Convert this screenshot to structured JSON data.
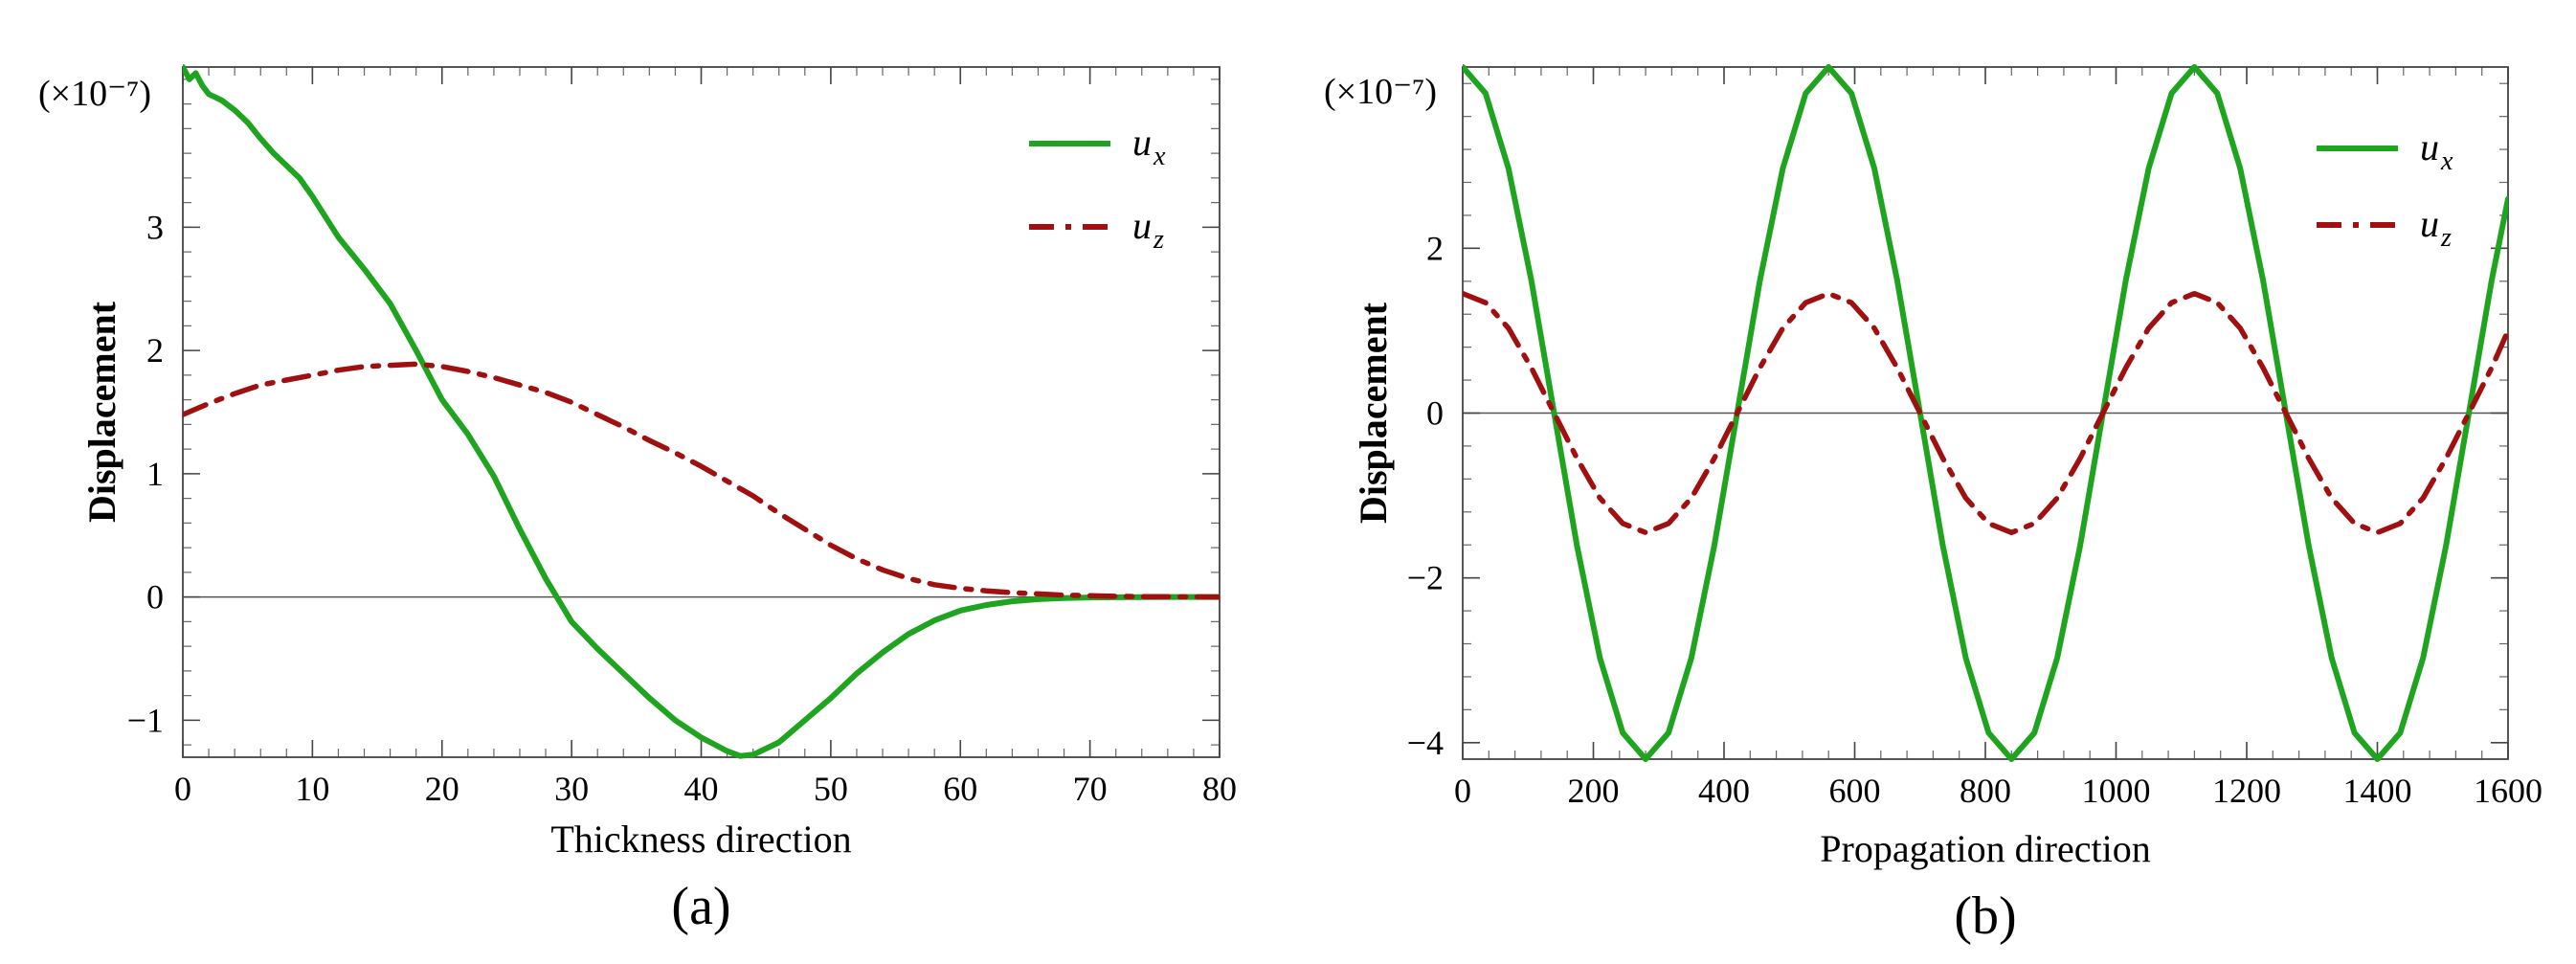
{
  "chart_data": [
    {
      "type": "line",
      "panel_label": "(a)",
      "xlabel": "Thickness direction",
      "ylabel": "Displacement",
      "scale_label": "(×10⁻⁷)",
      "xlim": [
        0,
        80
      ],
      "ylim": [
        -1.3,
        4.3
      ],
      "xticks": [
        0,
        10,
        20,
        30,
        40,
        50,
        60,
        70,
        80
      ],
      "yticks": [
        -1,
        0,
        1,
        2,
        3
      ],
      "xtick_labels": [
        "0",
        "10",
        "20",
        "30",
        "40",
        "50",
        "60",
        "70",
        "80"
      ],
      "ytick_labels": [
        "−1",
        "0",
        "1",
        "2",
        "3"
      ],
      "legend_position": "top-right",
      "series": [
        {
          "name": "u",
          "subscript": "x",
          "style": "solid",
          "color": "#1fa41f",
          "x": [
            0,
            0.5,
            1,
            1.5,
            2,
            3,
            4,
            5,
            6,
            7,
            8,
            9,
            10,
            12,
            14,
            16,
            18,
            20,
            22,
            24,
            26,
            28,
            30,
            32,
            34,
            36,
            38,
            40,
            42,
            43,
            44,
            46,
            48,
            50,
            52,
            54,
            56,
            58,
            60,
            62,
            64,
            66,
            68,
            70,
            72,
            74,
            76,
            78,
            80
          ],
          "y": [
            4.3,
            4.2,
            4.25,
            4.15,
            4.08,
            4.03,
            3.95,
            3.85,
            3.72,
            3.6,
            3.5,
            3.4,
            3.25,
            2.92,
            2.66,
            2.38,
            2.0,
            1.6,
            1.32,
            0.98,
            0.55,
            0.15,
            -0.2,
            -0.42,
            -0.62,
            -0.82,
            -1.0,
            -1.14,
            -1.25,
            -1.29,
            -1.28,
            -1.18,
            -1.0,
            -0.82,
            -0.62,
            -0.45,
            -0.3,
            -0.19,
            -0.11,
            -0.065,
            -0.035,
            -0.018,
            -0.009,
            -0.004,
            -0.002,
            -0.001,
            0,
            0,
            0
          ]
        },
        {
          "name": "u",
          "subscript": "z",
          "style": "dashdot",
          "color": "#a01010",
          "x": [
            0,
            2,
            4,
            6,
            8,
            10,
            12,
            14,
            16,
            18,
            20,
            22,
            24,
            26,
            28,
            30,
            32,
            34,
            36,
            38,
            40,
            42,
            44,
            46,
            48,
            50,
            52,
            54,
            56,
            58,
            60,
            62,
            64,
            66,
            68,
            70,
            72,
            74,
            76,
            78,
            80
          ],
          "y": [
            1.48,
            1.57,
            1.65,
            1.72,
            1.76,
            1.8,
            1.84,
            1.87,
            1.88,
            1.89,
            1.87,
            1.83,
            1.78,
            1.72,
            1.66,
            1.58,
            1.48,
            1.38,
            1.27,
            1.17,
            1.06,
            0.94,
            0.82,
            0.68,
            0.55,
            0.42,
            0.31,
            0.22,
            0.15,
            0.1,
            0.07,
            0.05,
            0.035,
            0.025,
            0.015,
            0.01,
            0.006,
            0.003,
            0.002,
            0.001,
            0
          ]
        }
      ]
    },
    {
      "type": "line",
      "panel_label": "(b)",
      "xlabel": "Propagation direction",
      "ylabel": "Displacement",
      "scale_label": "(×10⁻⁷)",
      "xlim": [
        0,
        1600
      ],
      "ylim": [
        -4.2,
        4.2
      ],
      "xticks": [
        0,
        200,
        400,
        600,
        800,
        1000,
        1200,
        1400,
        1600
      ],
      "yticks": [
        -4,
        -2,
        0,
        2
      ],
      "xtick_labels": [
        "0",
        "200",
        "400",
        "600",
        "800",
        "1000",
        "1200",
        "1400",
        "1600"
      ],
      "ytick_labels": [
        "−4",
        "−2",
        "0",
        "2"
      ],
      "legend_position": "top-right",
      "series": [
        {
          "name": "u",
          "subscript": "x",
          "style": "solid",
          "color": "#1fa41f",
          "x": [
            0,
            35,
            70,
            105,
            140,
            175,
            210,
            245,
            280,
            315,
            350,
            385,
            420,
            455,
            490,
            525,
            560,
            595,
            630,
            665,
            700,
            735,
            770,
            805,
            840,
            875,
            910,
            945,
            980,
            1015,
            1050,
            1085,
            1120,
            1155,
            1190,
            1225,
            1260,
            1295,
            1330,
            1365,
            1400,
            1435,
            1470,
            1505,
            1540,
            1575,
            1600
          ],
          "y": [
            4.2,
            3.88,
            2.97,
            1.61,
            0,
            -1.61,
            -2.97,
            -3.88,
            -4.2,
            -3.88,
            -2.97,
            -1.61,
            0,
            1.61,
            2.97,
            3.88,
            4.2,
            3.88,
            2.97,
            1.61,
            0,
            -1.61,
            -2.97,
            -3.88,
            -4.2,
            -3.88,
            -2.97,
            -1.61,
            0,
            1.61,
            2.97,
            3.88,
            4.2,
            3.88,
            2.97,
            1.61,
            0,
            -1.61,
            -2.97,
            -3.88,
            -4.2,
            -3.88,
            -2.97,
            -1.61,
            0,
            1.61,
            2.6
          ]
        },
        {
          "name": "u",
          "subscript": "z",
          "style": "dashdot",
          "color": "#a01010",
          "x": [
            0,
            35,
            70,
            105,
            140,
            175,
            210,
            245,
            280,
            315,
            350,
            385,
            420,
            455,
            490,
            525,
            560,
            595,
            630,
            665,
            700,
            735,
            770,
            805,
            840,
            875,
            910,
            945,
            980,
            1015,
            1050,
            1085,
            1120,
            1155,
            1190,
            1225,
            1260,
            1295,
            1330,
            1365,
            1400,
            1435,
            1470,
            1505,
            1540,
            1575,
            1600
          ],
          "y": [
            1.45,
            1.34,
            1.03,
            0.55,
            0,
            -0.55,
            -1.03,
            -1.34,
            -1.45,
            -1.34,
            -1.03,
            -0.55,
            0,
            0.55,
            1.03,
            1.34,
            1.45,
            1.34,
            1.03,
            0.55,
            0,
            -0.55,
            -1.03,
            -1.34,
            -1.45,
            -1.34,
            -1.03,
            -0.55,
            0,
            0.55,
            1.03,
            1.34,
            1.45,
            1.34,
            1.03,
            0.55,
            0,
            -0.55,
            -1.03,
            -1.34,
            -1.45,
            -1.34,
            -1.03,
            -0.55,
            0,
            0.55,
            1.0
          ]
        }
      ]
    }
  ]
}
